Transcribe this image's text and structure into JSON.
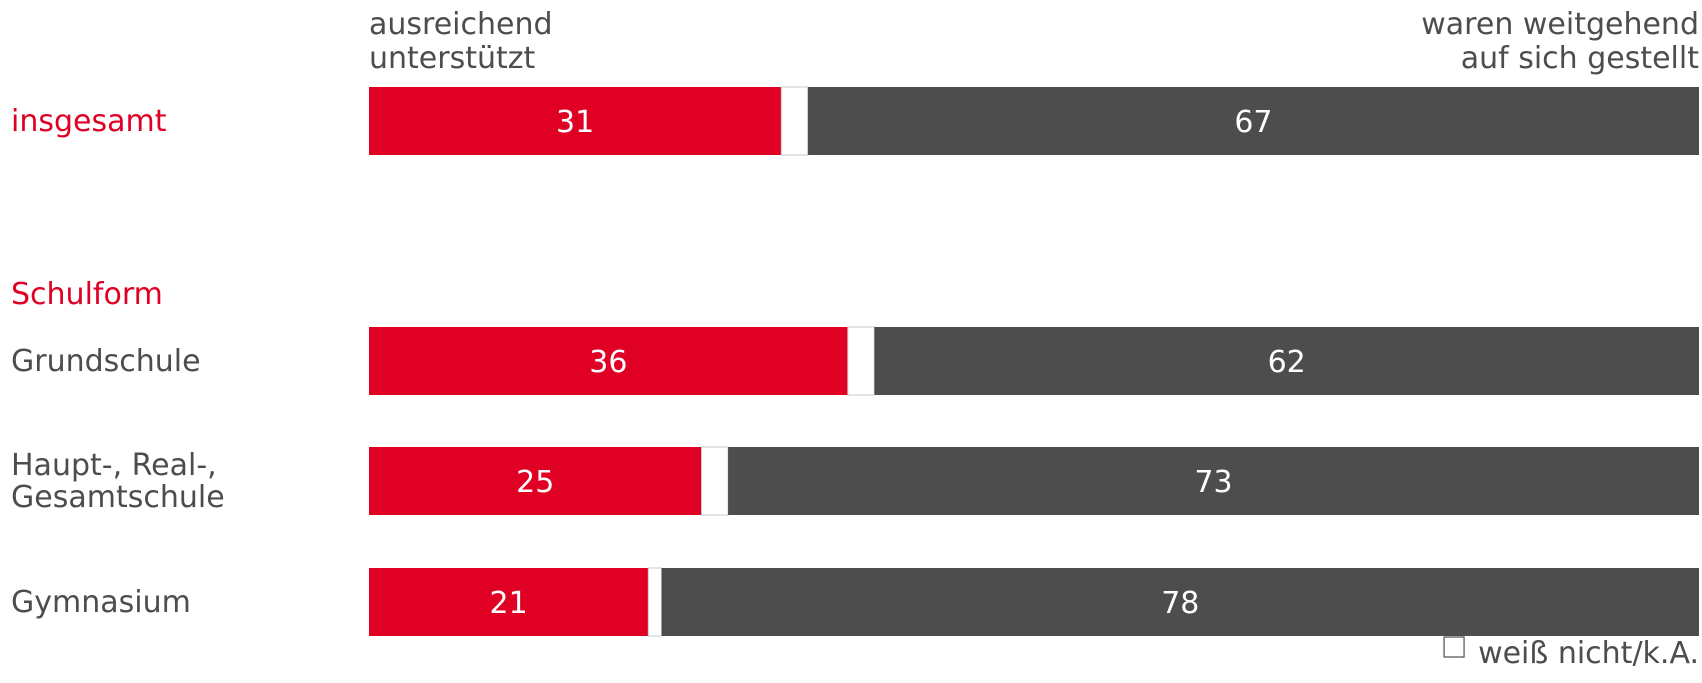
{
  "chart_data": {
    "type": "bar",
    "orientation": "horizontal",
    "stacked": true,
    "scale_max": 100,
    "column_labels": {
      "left": [
        "ausreichend",
        "unterstützt"
      ],
      "right": [
        "waren weitgehend",
        "auf sich gestellt"
      ]
    },
    "group_label": "Schulform",
    "categories": [
      "insgesamt",
      "Grundschule",
      "Haupt-, Real-, Gesamtschule",
      "Gymnasium"
    ],
    "category_lines": [
      [
        "insgesamt"
      ],
      [
        "Grundschule"
      ],
      [
        "Haupt-, Real-,",
        "Gesamtschule"
      ],
      [
        "Gymnasium"
      ]
    ],
    "series": [
      {
        "key": "supported",
        "values": [
          31,
          36,
          25,
          21
        ]
      },
      {
        "key": "unknown",
        "name": "weiß nicht/k.A.",
        "values": [
          2,
          2,
          2,
          1
        ]
      },
      {
        "key": "alone",
        "values": [
          67,
          62,
          73,
          78
        ]
      }
    ],
    "legend": {
      "label": "weiß nicht/k.A.",
      "position": "bottom-right"
    },
    "grid": false
  },
  "colors": {
    "supported": "#e00024",
    "unknown": "#ffffff",
    "alone": "#4d4d4d",
    "highlight_text": "#e00024",
    "text": "#4d4d4d",
    "value_text": "#ffffff",
    "bar_outline": "#c8c8c8"
  }
}
